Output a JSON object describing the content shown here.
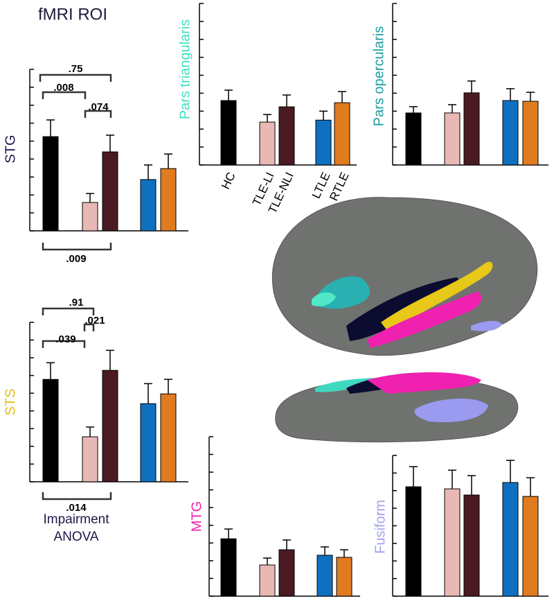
{
  "title": "fMRI ROI",
  "chart_data": [
    {
      "type": "bar",
      "ylabel": "STG",
      "ylabel_color": "#1a1a4a",
      "colors": [
        "#000000",
        "#e8b8b4",
        "#4a1a22",
        "#1070c0",
        "#e07b20"
      ],
      "values": [
        5.25,
        1.58,
        4.4,
        2.86,
        3.47
      ],
      "errors": [
        0.93,
        0.5,
        0.93,
        0.81,
        0.81
      ],
      "ylim": [
        0,
        9
      ],
      "yticks": [
        0,
        1,
        2,
        3,
        4,
        5,
        6,
        7,
        8,
        9
      ],
      "annotations": [
        ".75",
        ".008",
        ".074",
        ".009"
      ]
    },
    {
      "type": "bar",
      "ylabel": "Pars triangularis",
      "ylabel_color": "#3ee0c0",
      "categories": [
        "HC",
        "TLE-LI",
        "TLE-NLI",
        "LTLE",
        "RTLE"
      ],
      "colors": [
        "#000000",
        "#e8b8b4",
        "#4a1a22",
        "#1070c0",
        "#e07b20"
      ],
      "values": [
        3.59,
        2.39,
        3.24,
        2.5,
        3.47
      ],
      "errors": [
        0.58,
        0.42,
        0.66,
        0.5,
        0.62
      ],
      "ylim": [
        0,
        9
      ],
      "yticks": [
        0,
        1,
        2,
        3,
        4,
        5,
        6,
        7,
        8,
        9
      ]
    },
    {
      "type": "bar",
      "ylabel": "Pars opercularis",
      "ylabel_color": "#1a9ea0",
      "colors": [
        "#000000",
        "#e8b8b4",
        "#4a1a22",
        "#1070c0",
        "#e07b20"
      ],
      "values": [
        2.9,
        2.9,
        4.02,
        3.59,
        3.55
      ],
      "errors": [
        0.35,
        0.46,
        0.66,
        0.66,
        0.5
      ],
      "ylim": [
        0,
        9
      ],
      "yticks": [
        0,
        1,
        2,
        3,
        4,
        5,
        6,
        7,
        8,
        9
      ]
    },
    {
      "type": "bar",
      "ylabel": "STS",
      "ylabel_color": "#e0c020",
      "colors": [
        "#000000",
        "#e8b8b4",
        "#4a1a22",
        "#1070c0",
        "#e07b20"
      ],
      "values": [
        5.78,
        2.54,
        6.29,
        4.41,
        4.96
      ],
      "errors": [
        0.94,
        0.55,
        1.13,
        1.13,
        0.82
      ],
      "ylim": [
        0,
        9
      ],
      "yticks": [
        0,
        1,
        2,
        3,
        4,
        5,
        6,
        7,
        8,
        9
      ],
      "annotations": [
        ".91",
        ".021",
        ".039",
        ".014"
      ],
      "xlabel": [
        "Impairment",
        "ANOVA"
      ]
    },
    {
      "type": "bar",
      "ylabel": "MTG",
      "ylabel_color": "#f020b0",
      "colors": [
        "#000000",
        "#e8b8b4",
        "#4a1a22",
        "#1070c0",
        "#e07b20"
      ],
      "values": [
        3.24,
        1.76,
        2.62,
        2.31,
        2.19
      ],
      "errors": [
        0.55,
        0.39,
        0.55,
        0.47,
        0.43
      ],
      "ylim": [
        0,
        9
      ],
      "yticks": [
        0,
        1,
        2,
        3,
        4,
        5,
        6,
        7,
        8,
        9
      ]
    },
    {
      "type": "bar",
      "ylabel": "Fusiform",
      "ylabel_color": "#a0a0f0",
      "colors": [
        "#000000",
        "#e8b8b4",
        "#4a1a22",
        "#1070c0",
        "#e07b20"
      ],
      "values": [
        6.22,
        6.1,
        5.75,
        6.46,
        5.67
      ],
      "errors": [
        1.14,
        1.06,
        1.1,
        1.26,
        1.06
      ],
      "ylim": [
        0,
        8
      ],
      "yticks": [
        0,
        1,
        2,
        3,
        4,
        5,
        6,
        7,
        8
      ]
    }
  ]
}
